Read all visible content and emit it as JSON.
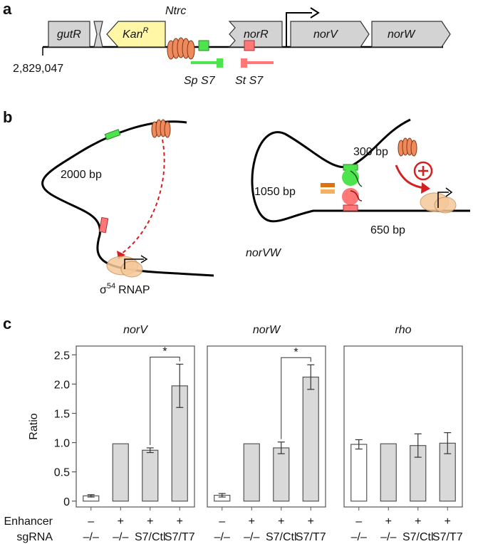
{
  "panel_labels": [
    "a",
    "b",
    "c"
  ],
  "panel_a": {
    "genes": [
      {
        "label": "gutR"
      },
      {
        "label": "Kan",
        "superscript": "R"
      },
      {
        "label": "norR"
      },
      {
        "label": "norV"
      },
      {
        "label": "norW"
      }
    ],
    "activator": "Ntrc",
    "coordinate": "2,829,047",
    "guides": [
      "Sp S7",
      "St S7"
    ]
  },
  "panel_b": {
    "left": {
      "length": "2000 bp",
      "gene": "norVW",
      "polymerase": {
        "symbol": "σ",
        "superscript": "54",
        "label": "RNAP"
      }
    },
    "right": {
      "lengths": [
        "300 bp",
        "1050 bp",
        "650 bp"
      ]
    }
  },
  "x_rows": [
    "Enhancer",
    "sgRNA"
  ],
  "chart_data": [
    {
      "type": "bar",
      "title": "norV",
      "ylabel": "Ratio",
      "enhancer": [
        "–",
        "+",
        "+",
        "+"
      ],
      "categories": [
        "–/–",
        "–/–",
        "S7/Ctl",
        "S7/T7"
      ],
      "values": [
        0.09,
        0.98,
        0.87,
        1.97
      ],
      "errors": [
        0.02,
        null,
        0.04,
        0.37
      ],
      "colors": [
        "#ffffff",
        "#d9d9d9",
        "#d9d9d9",
        "#d9d9d9"
      ],
      "ylim": [
        -0.1,
        2.65
      ],
      "yticks": [
        0,
        0.5,
        {
          "value": 1,
          "label": "1.0"
        },
        1.5,
        {
          "value": 2,
          "label": "2.0"
        },
        2.5
      ],
      "annotation": "*"
    },
    {
      "type": "bar",
      "title": "norW",
      "enhancer": [
        "–",
        "+",
        "+",
        "+"
      ],
      "categories": [
        "–/–",
        "–/–",
        "S7/Ctl",
        "S7/T7"
      ],
      "values": [
        0.1,
        0.98,
        0.91,
        2.12
      ],
      "errors": [
        0.03,
        null,
        0.1,
        0.21
      ],
      "colors": [
        "#ffffff",
        "#d9d9d9",
        "#d9d9d9",
        "#d9d9d9"
      ],
      "ylim": [
        -0.1,
        2.65
      ],
      "annotation": "*"
    },
    {
      "type": "bar",
      "title": "rho",
      "enhancer": [
        "–",
        "+",
        "+",
        "+"
      ],
      "categories": [
        "–/–",
        "–/–",
        "S7/Ctl",
        "S7/T7"
      ],
      "values": [
        0.97,
        0.98,
        0.95,
        0.99
      ],
      "errors": [
        0.08,
        null,
        0.2,
        0.18
      ],
      "colors": [
        "#ffffff",
        "#d9d9d9",
        "#d9d9d9",
        "#d9d9d9"
      ],
      "ylim": [
        -0.1,
        2.65
      ]
    }
  ]
}
